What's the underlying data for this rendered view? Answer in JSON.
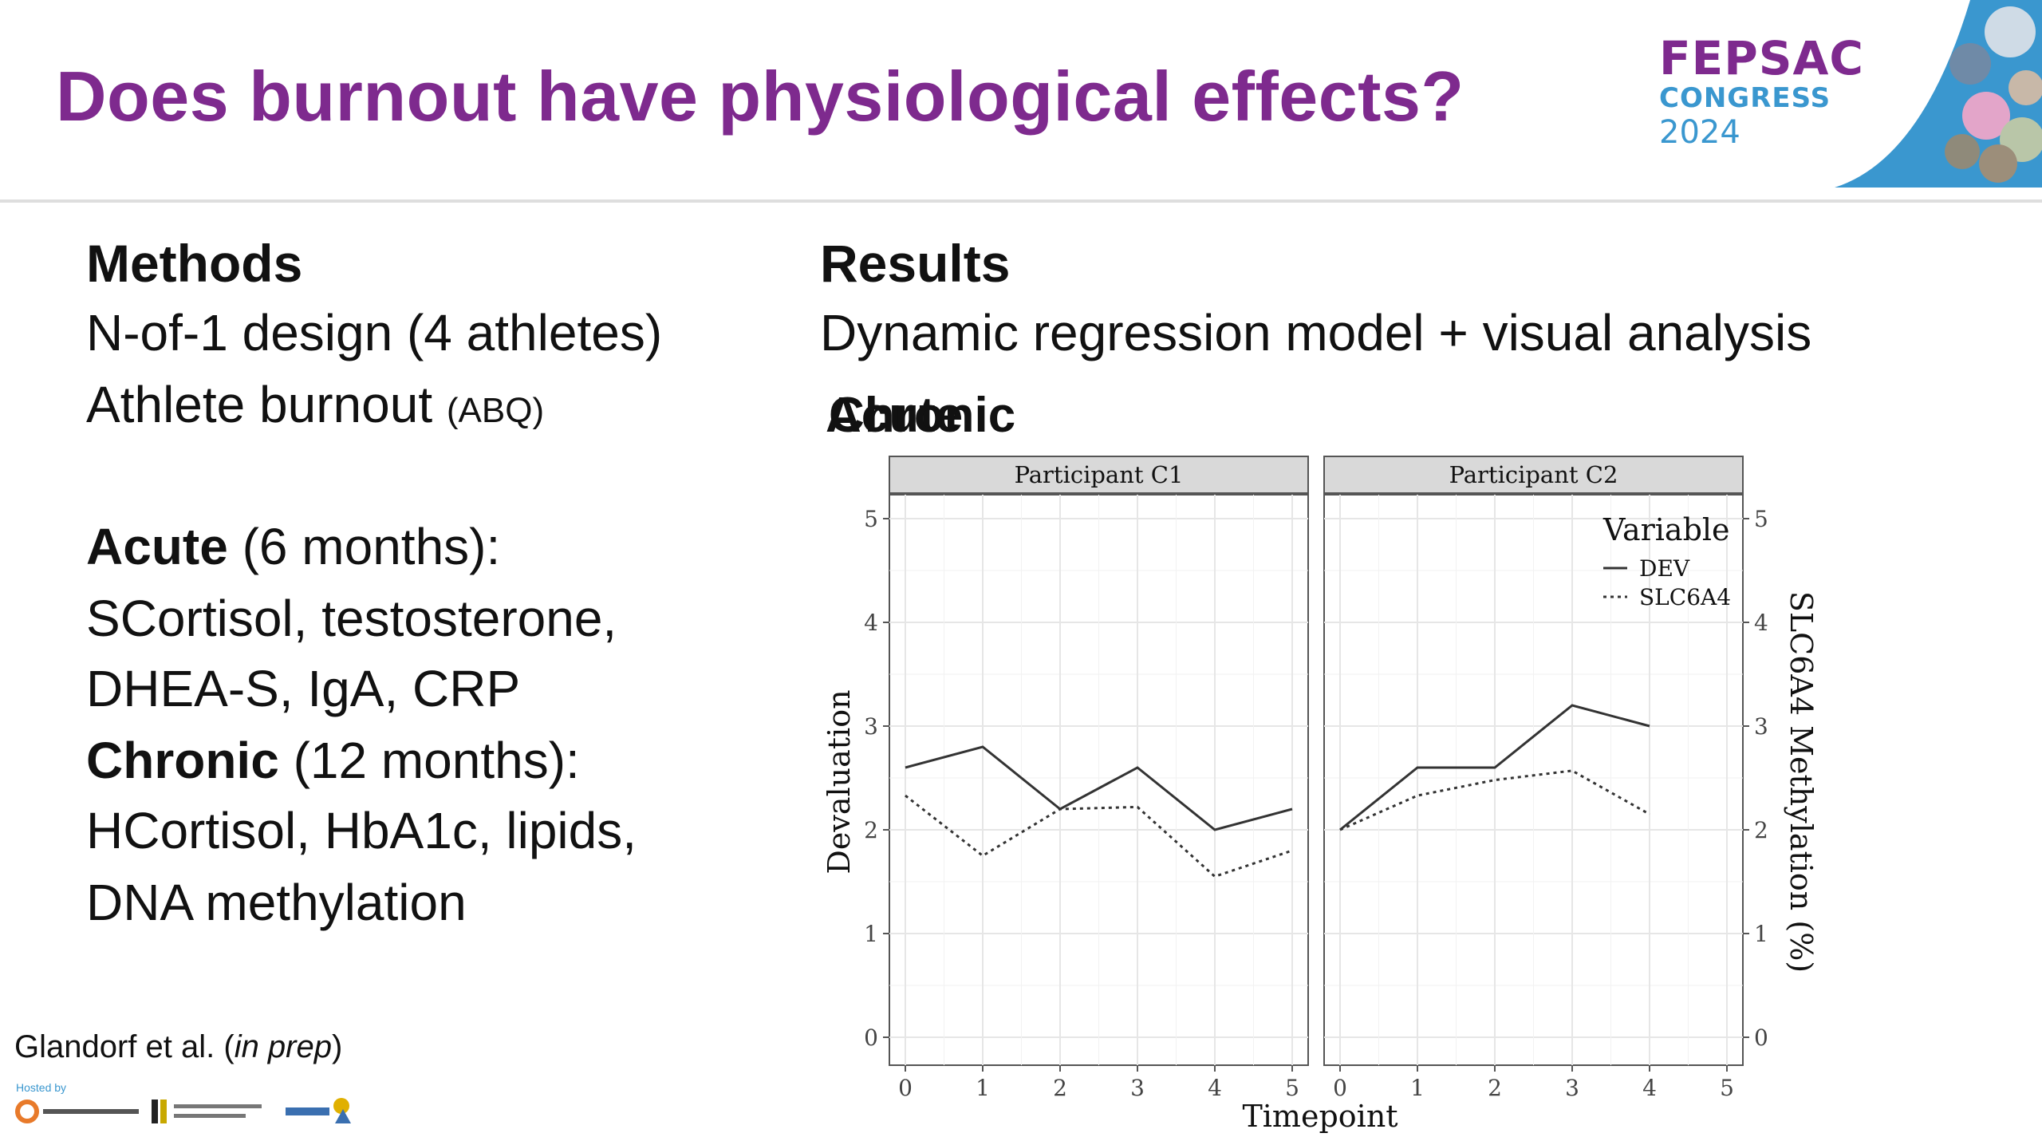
{
  "slide": {
    "title": "Does burnout have physiological effects?"
  },
  "logo": {
    "line1": "FEPSAC",
    "line2": "CONGRESS",
    "line3": "2024"
  },
  "methods": {
    "heading": "Methods",
    "line1": "N-of-1 design (4 athletes)",
    "line2_main": "Athlete burnout ",
    "line2_small": "(ABQ)",
    "acute_label": "Acute",
    "acute_rest": " (6 months):",
    "acute_line1": "SCortisol, testosterone,",
    "acute_line2": "DHEA-S, IgA, CRP",
    "chronic_label": "Chronic",
    "chronic_rest": " (12 months):",
    "chronic_line1": "HCortisol, HbA1c, lipids,",
    "chronic_line2": "DNA methylation"
  },
  "results": {
    "heading": "Results",
    "line1": "Dynamic regression model + visual analysis",
    "overlap_a": "Acute",
    "overlap_b": "Chronic"
  },
  "citation": {
    "authors": "Glandorf et al. (",
    "in_prep": "in prep",
    "close": ")"
  },
  "hosted_by": "Hosted by",
  "colors": {
    "title_purple": "#7e2a8e",
    "logo_blue": "#3a97cf",
    "panel_strip": "#d9d9d9",
    "line": "#333333"
  },
  "chart_data": {
    "type": "line",
    "xlabel": "Timepoint",
    "ylabel": "Devaluation",
    "ylabel_right": "SLC6A4 Methylation (%)",
    "xlim": [
      0,
      5
    ],
    "ylim": [
      0,
      5
    ],
    "x_ticks": [
      "0",
      "1",
      "2",
      "3",
      "4",
      "5"
    ],
    "y_ticks": [
      "0",
      "1",
      "2",
      "3",
      "4",
      "5"
    ],
    "grid": true,
    "legend": {
      "title": "Variable",
      "placement": "top-right",
      "entries": [
        "DEV",
        "SLC6A4"
      ]
    },
    "panels": [
      {
        "title": "Participant C1",
        "series": [
          {
            "name": "DEV",
            "style": "solid",
            "x": [
              0,
              1,
              2,
              3,
              4,
              5
            ],
            "y": [
              2.6,
              2.8,
              2.2,
              2.6,
              2.0,
              2.2
            ]
          },
          {
            "name": "SLC6A4",
            "style": "dotted",
            "x": [
              0,
              1,
              2,
              3,
              4,
              5
            ],
            "y": [
              2.33,
              1.75,
              2.2,
              2.22,
              1.55,
              1.8
            ]
          }
        ]
      },
      {
        "title": "Participant C2",
        "series": [
          {
            "name": "DEV",
            "style": "solid",
            "x": [
              0,
              1,
              2,
              3,
              4
            ],
            "y": [
              2.0,
              2.6,
              2.6,
              3.2,
              3.0
            ]
          },
          {
            "name": "SLC6A4",
            "style": "dotted",
            "x": [
              0,
              1,
              2,
              3,
              4
            ],
            "y": [
              2.0,
              2.33,
              2.48,
              2.57,
              2.15
            ]
          }
        ]
      }
    ]
  }
}
